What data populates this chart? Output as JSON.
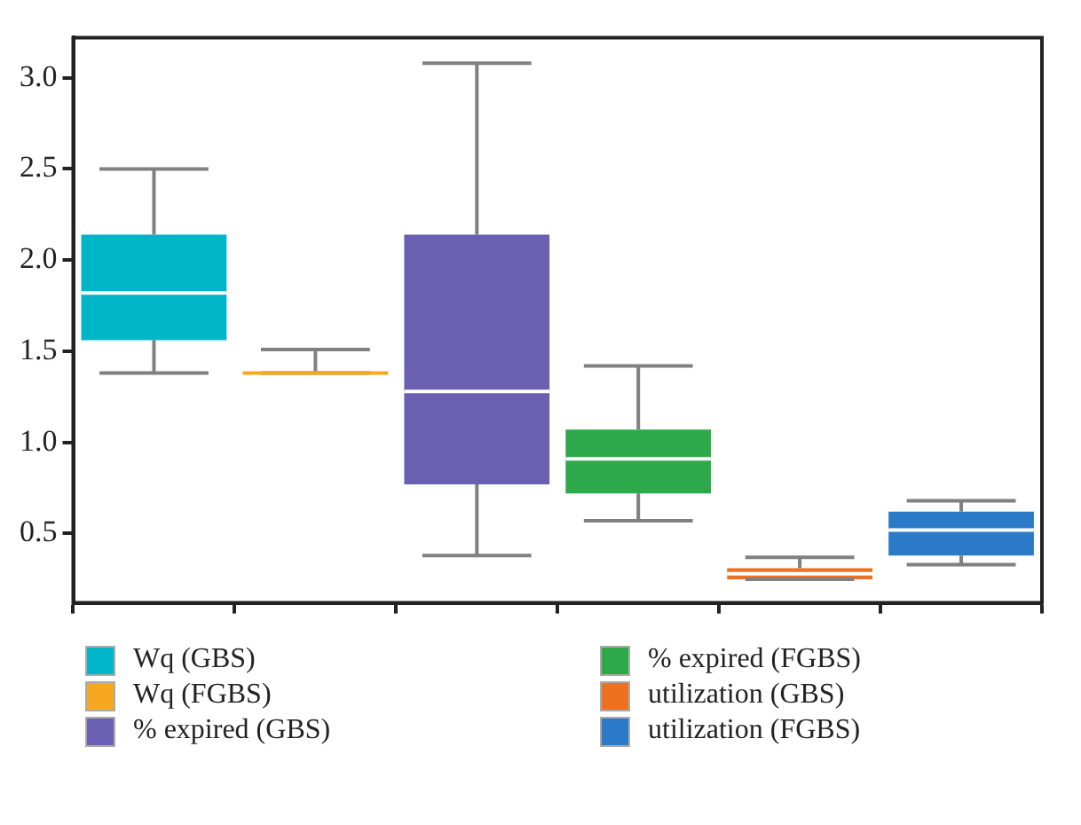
{
  "chart_data": {
    "type": "box",
    "categories": [
      null,
      null,
      null,
      null,
      null,
      null
    ],
    "ylim": [
      0.12,
      3.22
    ],
    "yticks": [
      {
        "value": 0.5,
        "label": "0.5"
      },
      {
        "value": 1,
        "label": "1.0"
      },
      {
        "value": 1.5,
        "label": "1.5"
      },
      {
        "value": 2,
        "label": "2.0"
      },
      {
        "value": 2.5,
        "label": "2.5"
      },
      {
        "value": 3,
        "label": "3.0"
      }
    ],
    "tick_labels": "y",
    "grid": false,
    "legend": "bottom",
    "series": [
      {
        "name": "Wq (GBS)",
        "color": "#00b5c8",
        "boxes": [
          {
            "low": 1.38,
            "q1": 1.56,
            "median": 1.82,
            "q3": 2.14,
            "high": 2.5
          },
          null,
          null,
          null,
          null,
          null
        ]
      },
      {
        "name": "Wq (FGBS)",
        "color": "#f7a823",
        "boxes": [
          null,
          {
            "low": 1.38,
            "q1": 1.38,
            "median": 1.38,
            "q3": 1.38,
            "high": 1.51
          },
          null,
          null,
          null,
          null
        ]
      },
      {
        "name": "% expired (GBS)",
        "color": "#6a5fb0",
        "boxes": [
          null,
          null,
          {
            "low": 0.38,
            "q1": 0.77,
            "median": 1.28,
            "q3": 2.14,
            "high": 3.08
          },
          null,
          null,
          null
        ]
      },
      {
        "name": "% expired (FGBS)",
        "color": "#2da84a",
        "boxes": [
          null,
          null,
          null,
          {
            "low": 0.57,
            "q1": 0.72,
            "median": 0.91,
            "q3": 1.07,
            "high": 1.42
          },
          null,
          null
        ]
      },
      {
        "name": "utilization (GBS)",
        "color": "#f07022",
        "boxes": [
          null,
          null,
          null,
          null,
          {
            "low": 0.25,
            "q1": 0.25,
            "median": 0.28,
            "q3": 0.31,
            "high": 0.37
          },
          null
        ]
      },
      {
        "name": "utilization (FGBS)",
        "color": "#2a7ac8",
        "boxes": [
          null,
          null,
          null,
          null,
          null,
          {
            "low": 0.33,
            "q1": 0.38,
            "median": 0.52,
            "q3": 0.62,
            "high": 0.68
          }
        ]
      }
    ]
  }
}
